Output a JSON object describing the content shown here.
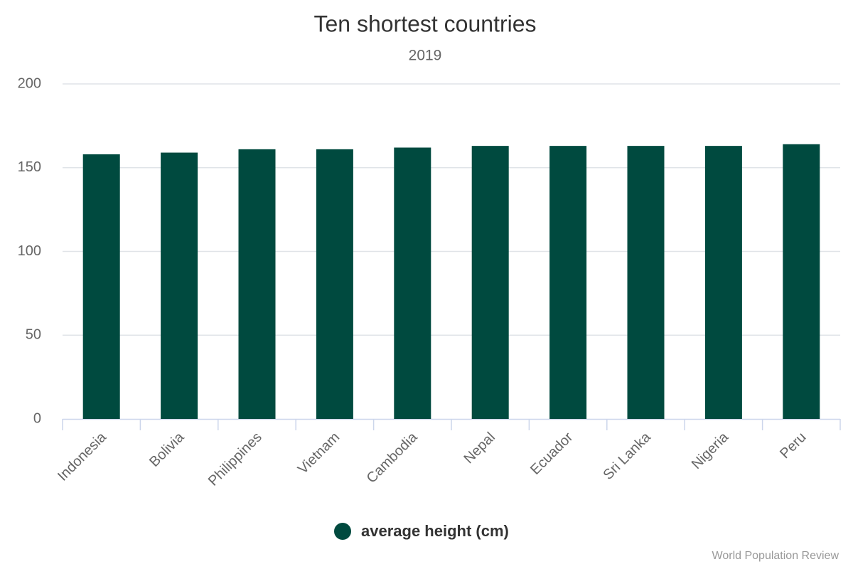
{
  "chart_data": {
    "type": "bar",
    "title": "Ten shortest countries",
    "subtitle": "2019",
    "categories": [
      "Indonesia",
      "Bolivia",
      "Philippines",
      "Vietnam",
      "Cambodia",
      "Nepal",
      "Ecuador",
      "Sri Lanka",
      "Nigeria",
      "Peru"
    ],
    "series": [
      {
        "name": "average height (cm)",
        "color": "#004a3f",
        "values": [
          158,
          159,
          161,
          161,
          162,
          163,
          163,
          163,
          163,
          164
        ]
      }
    ],
    "ylim": [
      0,
      200
    ],
    "yticks": [
      0,
      50,
      100,
      150,
      200
    ],
    "grid": true,
    "legend": "bottom",
    "credits": "World Population Review"
  }
}
